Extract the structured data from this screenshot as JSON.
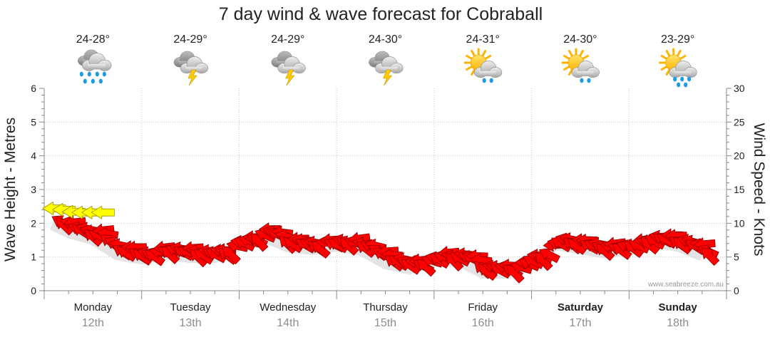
{
  "chart_data": {
    "type": "line",
    "title": "7 day wind & wave forecast for Cobraball",
    "ylabel_left": "Wave Height - Metres",
    "ylabel_right": "Wind Speed - Knots",
    "ylim_left": [
      0,
      6
    ],
    "ylim_right": [
      0,
      30
    ],
    "yticks_left": [
      "0",
      "1",
      "2",
      "3",
      "4",
      "5",
      "6"
    ],
    "yticks_right": [
      "0",
      "5",
      "10",
      "15",
      "20",
      "25",
      "30"
    ],
    "watermark": "www.seabreeze.com.au",
    "grid": true,
    "days": [
      {
        "name": "Monday",
        "date": "12th",
        "temp": "24-28°",
        "icon": "rain-cloud-icon",
        "bold": false
      },
      {
        "name": "Tuesday",
        "date": "13th",
        "temp": "24-29°",
        "icon": "thunderstorm-icon",
        "bold": false
      },
      {
        "name": "Wednesday",
        "date": "14th",
        "temp": "24-29°",
        "icon": "thunderstorm-icon",
        "bold": false
      },
      {
        "name": "Thursday",
        "date": "15th",
        "temp": "24-30°",
        "icon": "thunderstorm-icon",
        "bold": false
      },
      {
        "name": "Friday",
        "date": "16th",
        "temp": "24-31°",
        "icon": "sun-cloud-shower-icon",
        "bold": false
      },
      {
        "name": "Saturday",
        "date": "17th",
        "temp": "24-30°",
        "icon": "sun-cloud-shower-icon",
        "bold": true
      },
      {
        "name": "Sunday",
        "date": "18th",
        "temp": "23-29°",
        "icon": "sun-cloud-rain-icon",
        "bold": true
      }
    ],
    "series": [
      {
        "name": "Wind",
        "color": "#ff0000",
        "color_light": "#ffff00",
        "x_day": [
          0.08,
          0.25,
          0.5,
          0.75,
          1.0,
          1.25,
          1.5,
          1.75,
          2.0,
          2.25,
          2.5,
          2.75,
          3.0,
          3.25,
          3.5,
          3.75,
          4.0,
          4.25,
          4.5,
          4.75,
          5.0,
          5.25,
          5.5,
          5.75,
          6.0,
          6.25,
          6.5,
          6.75
        ],
        "knots": [
          11,
          9.8,
          8.8,
          6.5,
          5.9,
          6.6,
          6.1,
          6.1,
          7.9,
          9.2,
          7.7,
          7.3,
          7.8,
          7.2,
          5.2,
          4.4,
          5.5,
          5.6,
          3.8,
          3.8,
          5.5,
          8.0,
          7.4,
          6.8,
          7.3,
          8.4,
          7.8,
          6.4
        ]
      }
    ],
    "light_wind": {
      "x_day": [
        0.0,
        0.1,
        0.2,
        0.3,
        0.4,
        0.5
      ],
      "knots": [
        12.2,
        12.0,
        11.7,
        11.6,
        11.6,
        11.6
      ]
    }
  }
}
